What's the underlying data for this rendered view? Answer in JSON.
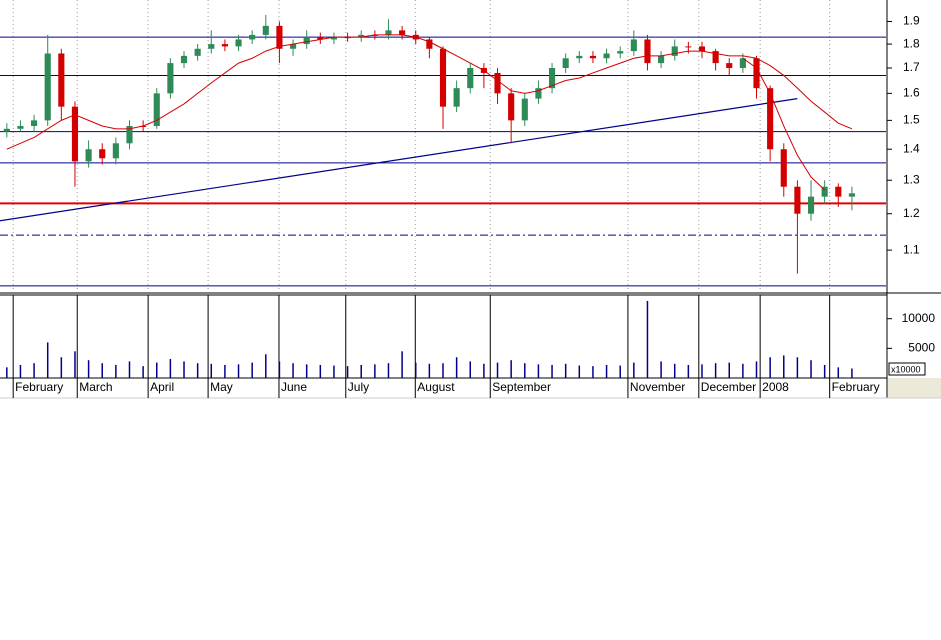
{
  "chart_data": {
    "type": "candlestick",
    "log_scale": true,
    "xlim": [
      0,
      65
    ],
    "xticks": [
      {
        "value": 0.6,
        "label": "February"
      },
      {
        "value": 5.3,
        "label": "March"
      },
      {
        "value": 10.5,
        "label": "April"
      },
      {
        "value": 14.9,
        "label": "May"
      },
      {
        "value": 20.1,
        "label": "June"
      },
      {
        "value": 25,
        "label": "July"
      },
      {
        "value": 30.1,
        "label": "August"
      },
      {
        "value": 35.6,
        "label": "September"
      },
      {
        "value": 45.7,
        "label": "November"
      },
      {
        "value": 50.9,
        "label": "December"
      },
      {
        "value": 55.4,
        "label": "2008"
      },
      {
        "value": 60.5,
        "label": "February"
      }
    ],
    "ylim": [
      1.0,
      2.0
    ],
    "yticks": [
      1.1,
      1.2,
      1.3,
      1.4,
      1.5,
      1.6,
      1.7,
      1.8,
      1.9
    ],
    "up_color": "#2e8b57",
    "down_color": "#d40000",
    "open": [
      1.46,
      1.47,
      1.48,
      1.5,
      1.76,
      1.55,
      1.36,
      1.4,
      1.37,
      1.42,
      1.48,
      1.48,
      1.6,
      1.72,
      1.75,
      1.78,
      1.8,
      1.79,
      1.82,
      1.84,
      1.88,
      1.78,
      1.8,
      1.83,
      1.82,
      1.83,
      1.83,
      1.84,
      1.84,
      1.86,
      1.84,
      1.82,
      1.78,
      1.55,
      1.62,
      1.7,
      1.68,
      1.6,
      1.5,
      1.58,
      1.62,
      1.7,
      1.74,
      1.75,
      1.74,
      1.76,
      1.77,
      1.82,
      1.72,
      1.75,
      1.79,
      1.79,
      1.77,
      1.72,
      1.7,
      1.74,
      1.62,
      1.4,
      1.28,
      1.2,
      1.25,
      1.28,
      1.25
    ],
    "high": [
      1.49,
      1.5,
      1.52,
      1.84,
      1.78,
      1.57,
      1.43,
      1.42,
      1.44,
      1.5,
      1.5,
      1.62,
      1.74,
      1.77,
      1.8,
      1.86,
      1.82,
      1.84,
      1.86,
      1.93,
      1.9,
      1.82,
      1.86,
      1.85,
      1.85,
      1.85,
      1.86,
      1.86,
      1.91,
      1.88,
      1.86,
      1.83,
      1.79,
      1.65,
      1.72,
      1.72,
      1.7,
      1.62,
      1.6,
      1.65,
      1.72,
      1.76,
      1.77,
      1.77,
      1.78,
      1.79,
      1.86,
      1.84,
      1.77,
      1.82,
      1.81,
      1.81,
      1.78,
      1.74,
      1.76,
      1.75,
      1.63,
      1.42,
      1.3,
      1.3,
      1.3,
      1.29,
      1.28
    ],
    "low": [
      1.44,
      1.46,
      1.46,
      1.48,
      1.5,
      1.28,
      1.34,
      1.35,
      1.35,
      1.4,
      1.46,
      1.47,
      1.58,
      1.7,
      1.73,
      1.76,
      1.77,
      1.77,
      1.8,
      1.82,
      1.72,
      1.75,
      1.78,
      1.8,
      1.8,
      1.81,
      1.81,
      1.82,
      1.82,
      1.82,
      1.8,
      1.74,
      1.47,
      1.53,
      1.6,
      1.62,
      1.56,
      1.42,
      1.48,
      1.56,
      1.6,
      1.68,
      1.72,
      1.72,
      1.72,
      1.74,
      1.75,
      1.69,
      1.7,
      1.73,
      1.76,
      1.74,
      1.69,
      1.67,
      1.68,
      1.58,
      1.36,
      1.25,
      1.04,
      1.18,
      1.23,
      1.22,
      1.21
    ],
    "close": [
      1.47,
      1.48,
      1.5,
      1.76,
      1.55,
      1.36,
      1.4,
      1.37,
      1.42,
      1.48,
      1.48,
      1.6,
      1.72,
      1.75,
      1.78,
      1.8,
      1.79,
      1.82,
      1.84,
      1.88,
      1.78,
      1.8,
      1.83,
      1.82,
      1.83,
      1.83,
      1.84,
      1.84,
      1.86,
      1.84,
      1.82,
      1.78,
      1.55,
      1.62,
      1.7,
      1.68,
      1.6,
      1.5,
      1.58,
      1.62,
      1.7,
      1.74,
      1.75,
      1.74,
      1.76,
      1.77,
      1.82,
      1.72,
      1.75,
      1.79,
      1.79,
      1.77,
      1.72,
      1.7,
      1.74,
      1.62,
      1.4,
      1.28,
      1.2,
      1.25,
      1.28,
      1.25,
      1.26
    ],
    "averages": [
      {
        "color": "#d40000",
        "values": [
          1.4,
          1.42,
          1.44,
          1.47,
          1.5,
          1.52,
          1.5,
          1.48,
          1.47,
          1.47,
          1.48,
          1.5,
          1.53,
          1.56,
          1.6,
          1.64,
          1.68,
          1.72,
          1.74,
          1.77,
          1.79,
          1.8,
          1.81,
          1.82,
          1.83,
          1.83,
          1.83,
          1.84,
          1.84,
          1.84,
          1.83,
          1.81,
          1.78,
          1.75,
          1.72,
          1.69,
          1.65,
          1.61,
          1.6,
          1.61,
          1.63,
          1.65,
          1.66,
          1.68,
          1.7,
          1.72,
          1.74,
          1.75,
          1.75,
          1.76,
          1.77,
          1.77,
          1.76,
          1.75,
          1.75,
          1.74,
          1.71,
          1.67,
          1.62,
          1.57,
          1.53,
          1.49,
          1.47
        ]
      },
      {
        "color": "#d40000",
        "values": [
          null,
          null,
          null,
          null,
          null,
          null,
          null,
          null,
          null,
          null,
          null,
          null,
          null,
          null,
          null,
          null,
          null,
          null,
          null,
          null,
          null,
          null,
          null,
          null,
          null,
          null,
          null,
          null,
          null,
          null,
          null,
          null,
          null,
          null,
          null,
          null,
          null,
          null,
          null,
          null,
          null,
          null,
          null,
          null,
          null,
          null,
          null,
          null,
          null,
          null,
          null,
          null,
          null,
          null,
          1.74,
          1.7,
          1.6,
          1.48,
          1.38,
          1.31,
          1.27,
          null,
          null
        ]
      }
    ],
    "hlines": [
      {
        "value": 1.83,
        "color": "#00008b",
        "style": "solid"
      },
      {
        "value": 1.67,
        "color": "#00008b",
        "style": "solid"
      },
      {
        "value": 1.46,
        "color": "#00008b",
        "style": "solid"
      },
      {
        "value": 1.355,
        "color": "#00008b",
        "style": "solid"
      },
      {
        "value": 1.23,
        "color": "#e00000",
        "style": "solid"
      },
      {
        "value": 1.14,
        "color": "#00008b",
        "style": "dashdot"
      },
      {
        "value": 1.01,
        "color": "#00008b",
        "style": "solid"
      }
    ],
    "trendline": {
      "color": "#00008b",
      "x": [
        0,
        58.5
      ],
      "y": [
        1.18,
        1.58
      ]
    },
    "volume": {
      "color": "#00008b",
      "unit": "x10000",
      "ylim": [
        0,
        14000
      ],
      "yticks": [
        5000,
        10000
      ],
      "values": [
        1800,
        2200,
        2500,
        6000,
        3500,
        4500,
        3000,
        2500,
        2200,
        2800,
        2000,
        2600,
        3200,
        2800,
        2500,
        2400,
        2200,
        2300,
        2600,
        4000,
        2800,
        2500,
        2300,
        2200,
        2100,
        2000,
        2200,
        2300,
        2500,
        4500,
        2600,
        2400,
        2500,
        3500,
        2800,
        2400,
        2600,
        3000,
        2500,
        2300,
        2200,
        2400,
        2100,
        2000,
        2200,
        2100,
        2600,
        13000,
        2800,
        2400,
        2200,
        2300,
        2500,
        2600,
        2400,
        2800,
        3500,
        3800,
        3500,
        3000,
        2200,
        1800,
        1600
      ]
    }
  }
}
